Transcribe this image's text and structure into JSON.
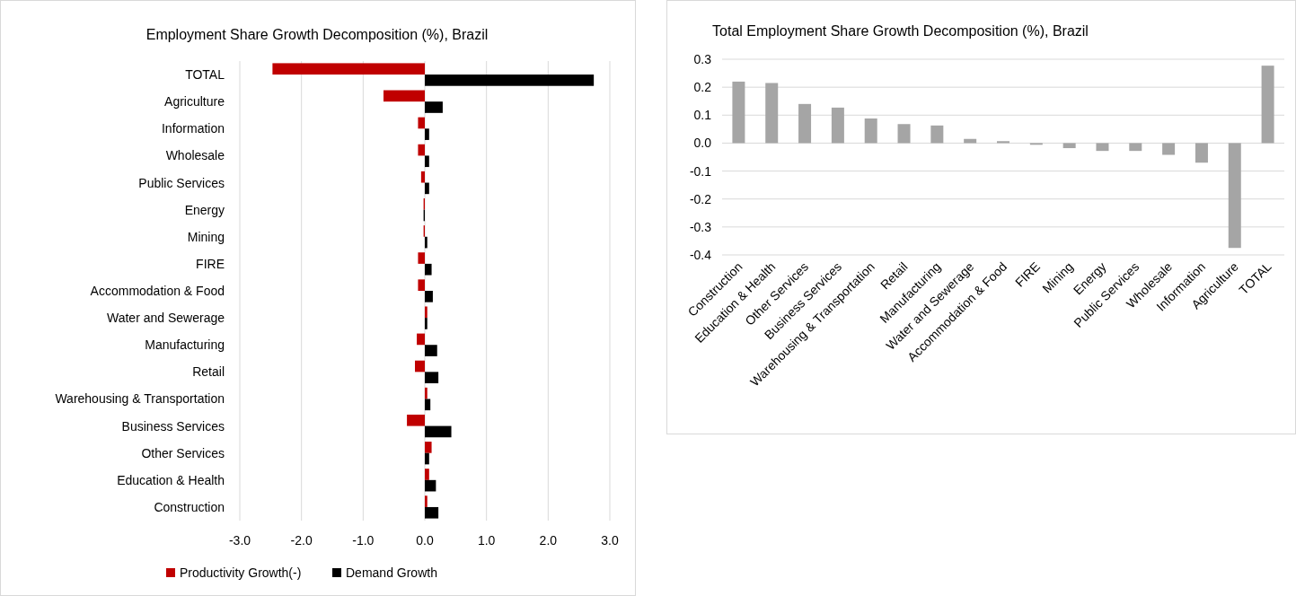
{
  "chart_data": [
    {
      "type": "bar",
      "orientation": "horizontal",
      "title": "Employment  Share Growth Decomposition  (%), Brazil",
      "categories": [
        "TOTAL",
        "Agriculture",
        "Information",
        "Wholesale",
        "Public Services",
        "Energy",
        "Mining",
        "FIRE",
        "Accommodation & Food",
        "Water and Sewerage",
        "Manufacturing",
        "Retail",
        "Warehousing & Transportation",
        "Business Services",
        "Other Services",
        "Education & Health",
        "Construction"
      ],
      "series": [
        {
          "name": "Productivity Growth(-)",
          "color": "#c00000",
          "values": [
            -2.47,
            -0.67,
            -0.11,
            -0.11,
            -0.06,
            -0.02,
            -0.02,
            -0.11,
            -0.11,
            0.04,
            -0.13,
            -0.16,
            0.04,
            -0.29,
            0.11,
            0.07,
            0.04
          ]
        },
        {
          "name": "Demand Growth",
          "color": "#000000",
          "values": [
            2.74,
            0.29,
            0.07,
            0.07,
            0.07,
            -0.02,
            0.04,
            0.11,
            0.13,
            0.04,
            0.2,
            0.22,
            0.09,
            0.43,
            0.07,
            0.18,
            0.22
          ]
        }
      ],
      "xlim": [
        -3,
        3
      ],
      "xticks": [
        {
          "value": -3,
          "label": "-3.0"
        },
        {
          "value": -2,
          "label": "-2.0"
        },
        {
          "value": -1,
          "label": "-1.0"
        },
        {
          "value": 0,
          "label": "0.0"
        },
        {
          "value": 1,
          "label": "1.0"
        },
        {
          "value": 2,
          "label": "2.0"
        },
        {
          "value": 3,
          "label": "3.0"
        }
      ],
      "grid": "x",
      "legend": "bottom"
    },
    {
      "type": "bar",
      "title": "Total Employment  Share Growth Decomposition  (%), Brazil",
      "categories": [
        "Construction",
        "Education & Health",
        "Other Services",
        "Business Services",
        "Warehousing & Transportation",
        "Retail",
        "Manufacturing",
        "Water and Sewerage",
        "Accommodation & Food",
        "FIRE",
        "Mining",
        "Energy",
        "Public Services",
        "Wholesale",
        "Information",
        "Agriculture",
        "TOTAL"
      ],
      "values": [
        0.22,
        0.215,
        0.14,
        0.127,
        0.088,
        0.068,
        0.063,
        0.015,
        0.007,
        -0.006,
        -0.018,
        -0.028,
        -0.028,
        -0.042,
        -0.07,
        -0.375,
        0.277
      ],
      "color": "#a5a5a5",
      "ylim": [
        -0.4,
        0.3
      ],
      "yticks": [
        {
          "value": -0.4,
          "label": "-0.4"
        },
        {
          "value": -0.3,
          "label": "-0.3"
        },
        {
          "value": -0.2,
          "label": "-0.2"
        },
        {
          "value": -0.1,
          "label": "-0.1"
        },
        {
          "value": 0,
          "label": "0.0"
        },
        {
          "value": 0.1,
          "label": "0.1"
        },
        {
          "value": 0.2,
          "label": "0.2"
        },
        {
          "value": 0.3,
          "label": "0.3"
        }
      ],
      "grid": "y"
    }
  ]
}
